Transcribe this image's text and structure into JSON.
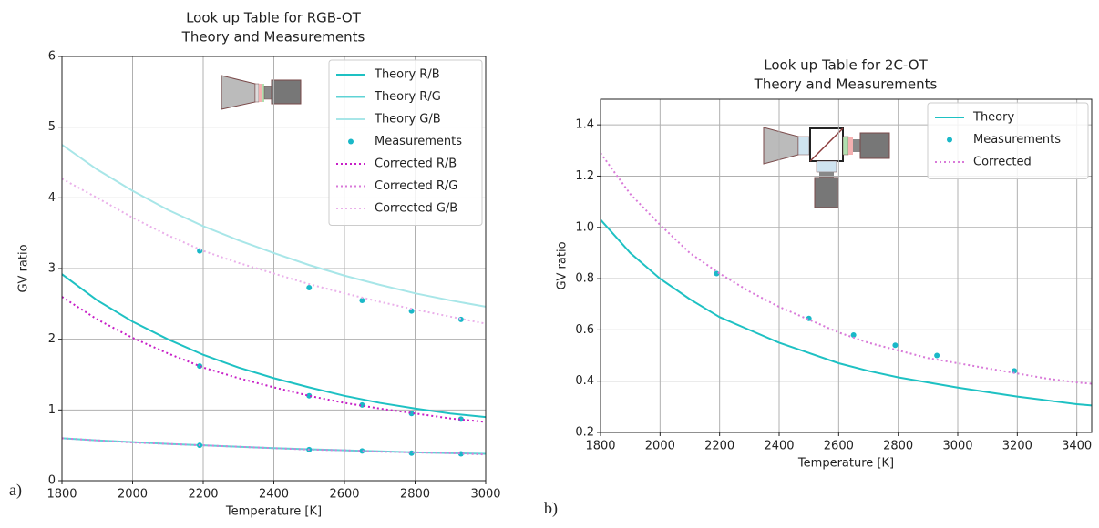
{
  "chart_data": [
    {
      "type": "line",
      "panel_label": "a)",
      "title": [
        "Look up Table for RGB-OT",
        "Theory and Measurements"
      ],
      "x_label": "Temperature [K]",
      "y_label": "GV ratio",
      "xlim": [
        1800,
        3000
      ],
      "ylim": [
        0,
        6
      ],
      "xticks": [
        1800,
        2000,
        2200,
        2400,
        2600,
        2800,
        3000
      ],
      "yticks": [
        0,
        1,
        2,
        3,
        4,
        5,
        6
      ],
      "grid": true,
      "legend": "upper right",
      "series": [
        {
          "name": "Theory R/B",
          "color": "#1ec1c3",
          "style": "solid",
          "x": [
            1800,
            1900,
            2000,
            2100,
            2200,
            2300,
            2400,
            2500,
            2600,
            2700,
            2800,
            2900,
            3000
          ],
          "values": [
            2.92,
            2.55,
            2.25,
            2.0,
            1.78,
            1.6,
            1.45,
            1.32,
            1.2,
            1.1,
            1.02,
            0.95,
            0.9
          ]
        },
        {
          "name": "Theory R/G",
          "color": "#5fd3d5",
          "style": "solid",
          "x": [
            1800,
            1900,
            2000,
            2100,
            2200,
            2300,
            2400,
            2500,
            2600,
            2700,
            2800,
            2900,
            3000
          ],
          "values": [
            0.6,
            0.57,
            0.545,
            0.52,
            0.5,
            0.48,
            0.46,
            0.445,
            0.43,
            0.415,
            0.4,
            0.39,
            0.38
          ]
        },
        {
          "name": "Theory G/B",
          "color": "#a8e6e8",
          "style": "solid",
          "x": [
            1800,
            1900,
            2000,
            2100,
            2200,
            2300,
            2400,
            2500,
            2600,
            2700,
            2800,
            2900,
            3000
          ],
          "values": [
            4.75,
            4.4,
            4.1,
            3.83,
            3.6,
            3.4,
            3.22,
            3.05,
            2.9,
            2.77,
            2.65,
            2.55,
            2.46
          ]
        },
        {
          "name": "Measurements",
          "color": "#1ab8c8",
          "style": "markers",
          "x": [
            2190,
            2500,
            2650,
            2790,
            2930,
            2190,
            2500,
            2650,
            2790,
            2930,
            2190,
            2500,
            2650,
            2790,
            2930
          ],
          "values": [
            1.62,
            1.2,
            1.07,
            0.95,
            0.87,
            0.5,
            0.44,
            0.42,
            0.39,
            0.38,
            3.25,
            2.73,
            2.55,
            2.4,
            2.28
          ]
        },
        {
          "name": "Corrected R/B",
          "color": "#c71ec7",
          "style": "dotted",
          "x": [
            1800,
            1900,
            2000,
            2100,
            2200,
            2300,
            2400,
            2500,
            2600,
            2700,
            2800,
            2900,
            3000
          ],
          "values": [
            2.6,
            2.28,
            2.02,
            1.8,
            1.6,
            1.45,
            1.32,
            1.2,
            1.1,
            1.02,
            0.95,
            0.88,
            0.83
          ]
        },
        {
          "name": "Corrected R/G",
          "color": "#d97ad9",
          "style": "dotted",
          "x": [
            1800,
            1900,
            2000,
            2100,
            2200,
            2300,
            2400,
            2500,
            2600,
            2700,
            2800,
            2900,
            3000
          ],
          "values": [
            0.6,
            0.57,
            0.54,
            0.52,
            0.5,
            0.48,
            0.46,
            0.44,
            0.43,
            0.41,
            0.4,
            0.39,
            0.37
          ]
        },
        {
          "name": "Corrected G/B",
          "color": "#eab0ea",
          "style": "dotted",
          "x": [
            1800,
            1900,
            2000,
            2100,
            2200,
            2300,
            2400,
            2500,
            2600,
            2700,
            2800,
            2900,
            3000
          ],
          "values": [
            4.27,
            4.0,
            3.72,
            3.47,
            3.25,
            3.08,
            2.93,
            2.78,
            2.65,
            2.53,
            2.42,
            2.32,
            2.22
          ]
        }
      ]
    },
    {
      "type": "line",
      "panel_label": "b)",
      "title": [
        "Look up Table for 2C-OT",
        "Theory and Measurements"
      ],
      "x_label": "Temperature [K]",
      "y_label": "GV ratio",
      "xlim": [
        1800,
        3450
      ],
      "ylim": [
        0.2,
        1.5
      ],
      "xticks": [
        1800,
        2000,
        2200,
        2400,
        2600,
        2800,
        3000,
        3200,
        3400
      ],
      "yticks": [
        0.2,
        0.4,
        0.6,
        0.8,
        {
          "value": 1,
          "label": "1.0"
        },
        1.2,
        1.4
      ],
      "grid": true,
      "legend": "upper right",
      "series": [
        {
          "name": "Theory",
          "color": "#1ec1c3",
          "style": "solid",
          "x": [
            1800,
            1900,
            2000,
            2100,
            2200,
            2300,
            2400,
            2500,
            2600,
            2700,
            2800,
            2900,
            3000,
            3100,
            3200,
            3300,
            3400,
            3450
          ],
          "values": [
            1.03,
            0.9,
            0.8,
            0.72,
            0.65,
            0.6,
            0.55,
            0.51,
            0.47,
            0.44,
            0.415,
            0.395,
            0.375,
            0.357,
            0.34,
            0.325,
            0.31,
            0.305
          ]
        },
        {
          "name": "Measurements",
          "color": "#1ab8c8",
          "style": "markers",
          "x": [
            2190,
            2500,
            2650,
            2790,
            2930,
            3190
          ],
          "values": [
            0.82,
            0.645,
            0.58,
            0.54,
            0.5,
            0.44
          ]
        },
        {
          "name": "Corrected",
          "color": "#d97ad9",
          "style": "dotted",
          "x": [
            1800,
            1900,
            2000,
            2100,
            2200,
            2300,
            2400,
            2500,
            2600,
            2700,
            2800,
            2900,
            3000,
            3100,
            3200,
            3300,
            3400,
            3450
          ],
          "values": [
            1.29,
            1.13,
            1.01,
            0.9,
            0.82,
            0.75,
            0.69,
            0.64,
            0.59,
            0.55,
            0.52,
            0.49,
            0.47,
            0.45,
            0.43,
            0.41,
            0.395,
            0.39
          ]
        }
      ]
    }
  ]
}
